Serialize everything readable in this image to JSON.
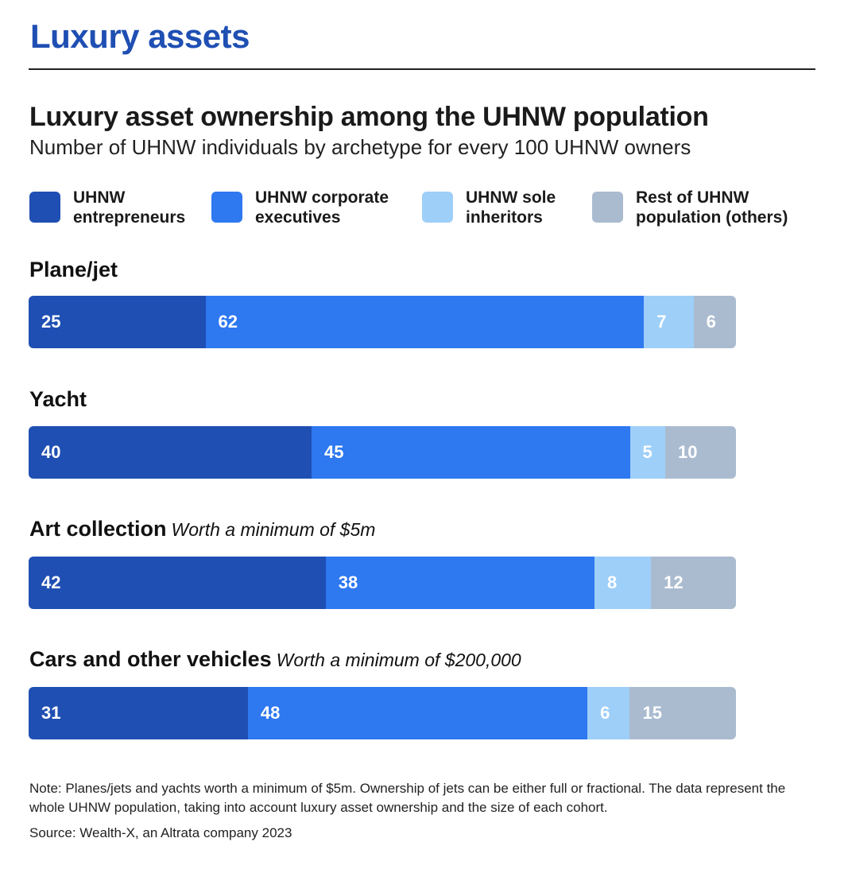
{
  "header": {
    "section_title": "Luxury assets"
  },
  "chart_data": {
    "type": "bar",
    "orientation": "horizontal",
    "stacked": true,
    "title": "Luxury asset ownership among the UHNW population",
    "subtitle": "Number of UHNW individuals by archetype for every 100 UHNW owners",
    "legend_placement": "top",
    "series": [
      {
        "name": "UHNW entrepreneurs",
        "color": "#1f4fb3"
      },
      {
        "name": "UHNW corporate executives",
        "color": "#2e78f0"
      },
      {
        "name": "UHNW sole inheritors",
        "color": "#9ecff8"
      },
      {
        "name": "Rest of UHNW population (others)",
        "color": "#aabbd0"
      }
    ],
    "categories": [
      {
        "label": "Plane/jet",
        "note": "",
        "values": [
          25,
          62,
          7,
          6
        ]
      },
      {
        "label": "Yacht",
        "note": "",
        "values": [
          40,
          45,
          5,
          10
        ]
      },
      {
        "label": "Art collection",
        "note": "Worth a minimum of $5m",
        "values": [
          42,
          38,
          8,
          12
        ]
      },
      {
        "label": "Cars and other vehicles",
        "note": "Worth a minimum of $200,000",
        "values": [
          31,
          48,
          6,
          15
        ]
      }
    ],
    "xlim": [
      0,
      100
    ]
  },
  "footer": {
    "note": "Note: Planes/jets and yachts worth a minimum of $5m. Ownership of jets can be either full or fractional. The data represent the whole UHNW population, taking into account luxury asset ownership and the size of each cohort.",
    "source": "Source: Wealth-X, an Altrata company 2023"
  }
}
